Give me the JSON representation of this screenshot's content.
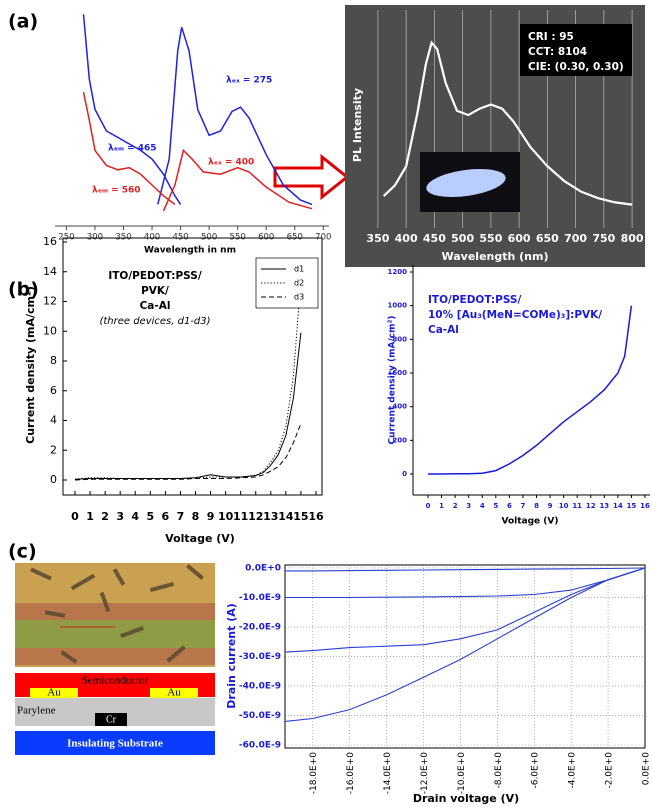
{
  "panel_labels": [
    "(a)",
    "(b)",
    "(c)"
  ],
  "device_diagram": {
    "semiconductor": "Semiconductor",
    "electrodes": [
      "Au",
      "Au"
    ],
    "dielectric": "Parylene",
    "gate": "Cr",
    "substrate": "Insulating Substrate"
  },
  "chart_data": [
    {
      "type": "line",
      "x_label": "Wavelength in nm",
      "xlim": [
        230,
        710
      ],
      "ylim": [
        0,
        100
      ],
      "xticks": [
        250,
        300,
        350,
        400,
        450,
        500,
        550,
        600,
        650,
        700
      ],
      "series": [
        {
          "name": "λₑₘ = 465",
          "color": "#2020e0",
          "x": [
            280,
            290,
            300,
            320,
            340,
            360,
            380,
            400,
            420,
            440,
            450
          ],
          "values": [
            98,
            68,
            54,
            44,
            41,
            38,
            35,
            31,
            24,
            14,
            10
          ]
        },
        {
          "name": "λₑₓ = 275",
          "color": "#2020e0",
          "x": [
            410,
            430,
            445,
            452,
            465,
            480,
            500,
            520,
            540,
            555,
            570,
            600,
            630,
            660,
            680
          ],
          "values": [
            10,
            31,
            81,
            92,
            81,
            54,
            42,
            44,
            53,
            55,
            50,
            33,
            19,
            12,
            10
          ]
        },
        {
          "name": "λₑₘ = 560",
          "color": "#e02020",
          "x": [
            280,
            290,
            300,
            320,
            340,
            360,
            380,
            400,
            420,
            440
          ],
          "values": [
            62,
            49,
            35,
            28,
            26,
            27,
            24,
            19,
            14,
            10
          ]
        },
        {
          "name": "λₑₓ = 400",
          "color": "#e02020",
          "x": [
            420,
            440,
            455,
            470,
            490,
            520,
            550,
            570,
            600,
            640,
            680
          ],
          "values": [
            7,
            19,
            35,
            31,
            25,
            24,
            27,
            25,
            18,
            11,
            8
          ]
        }
      ]
    },
    {
      "type": "line",
      "x_label": "Wavelength (nm)",
      "y_label": "PL Intensity",
      "xlim": [
        336,
        814
      ],
      "ylim": [
        0,
        100
      ],
      "xticks": [
        350,
        400,
        450,
        500,
        550,
        600,
        650,
        700,
        750,
        800
      ],
      "grid": true,
      "background": "#4d4d4d",
      "annotation": [
        "CRI : 95",
        "CCT: 8104",
        "CIE: (0.30, 0.30)"
      ],
      "series": [
        {
          "color": "#ffffff",
          "x": [
            360,
            380,
            400,
            420,
            435,
            445,
            455,
            470,
            490,
            510,
            530,
            550,
            570,
            590,
            620,
            650,
            680,
            710,
            740,
            770,
            800
          ],
          "values": [
            15,
            20,
            29,
            54,
            77,
            87,
            84,
            68,
            55,
            53,
            56,
            58,
            56,
            50,
            38,
            29,
            22,
            17,
            14,
            12,
            11
          ]
        }
      ]
    },
    {
      "type": "line",
      "annotation": [
        "ITO/PEDOT:PSS/",
        "PVK/",
        "Ca-Al",
        "(three devices, d1-d3)"
      ],
      "x_label": "Voltage (V)",
      "y_label": "Current density (mA/cm²)",
      "xlim": [
        0,
        16
      ],
      "ylim": [
        0,
        16
      ],
      "xticks": [
        0,
        1,
        2,
        3,
        4,
        5,
        6,
        7,
        8,
        9,
        10,
        11,
        12,
        13,
        14,
        15,
        16
      ],
      "yticks": [
        0,
        2,
        4,
        6,
        8,
        10,
        12,
        14,
        16
      ],
      "legend": "upper right",
      "x": [
        0,
        1,
        2,
        3,
        4,
        5,
        6,
        7,
        8,
        9,
        10,
        11,
        12,
        12.5,
        13,
        13.5,
        14,
        14.5,
        15
      ],
      "series": [
        {
          "name": "d1",
          "color": "#000000",
          "line_style": "solid",
          "values": [
            0.05,
            0.1,
            0.1,
            0.1,
            0.1,
            0.1,
            0.1,
            0.1,
            0.15,
            0.35,
            0.2,
            0.2,
            0.3,
            0.5,
            1.0,
            1.7,
            3.0,
            5.5,
            9.9
          ]
        },
        {
          "name": "d2",
          "color": "#000000",
          "line_style": "dotted",
          "values": [
            0.05,
            0.15,
            0.15,
            0.1,
            0.1,
            0.1,
            0.1,
            0.1,
            0.15,
            0.2,
            0.2,
            0.2,
            0.3,
            0.6,
            1.2,
            2.0,
            3.6,
            7.0,
            13.5
          ]
        },
        {
          "name": "d3",
          "color": "#000000",
          "line_style": "dashed",
          "values": [
            0,
            0.05,
            0.05,
            0.05,
            0.05,
            0.05,
            0.05,
            0.05,
            0.1,
            0.1,
            0.1,
            0.15,
            0.2,
            0.35,
            0.6,
            0.9,
            1.5,
            2.5,
            3.8
          ]
        }
      ]
    },
    {
      "type": "line",
      "annotation": [
        "ITO/PEDOT:PSS/",
        "10% [Au₃(MeN=COMe)₃]:PVK/",
        "Ca-Al"
      ],
      "x_label": "Voltage (V)",
      "y_label": "Current density (mA/cm²)",
      "xlim": [
        0,
        16
      ],
      "ylim": [
        0,
        1200
      ],
      "xticks": [
        0,
        1,
        2,
        3,
        4,
        5,
        6,
        7,
        8,
        9,
        10,
        11,
        12,
        13,
        14,
        15,
        16
      ],
      "yticks": [
        0,
        200,
        400,
        600,
        800,
        1000,
        1200
      ],
      "text_color": "#1a1adb",
      "x": [
        0,
        1,
        2,
        3,
        4,
        5,
        6,
        7,
        8,
        9,
        10,
        11,
        12,
        13,
        14,
        14.5,
        15
      ],
      "series": [
        {
          "color": "#1a1adb",
          "values": [
            0,
            0,
            1,
            2,
            5,
            20,
            60,
            110,
            170,
            240,
            310,
            370,
            430,
            500,
            600,
            700,
            1000
          ]
        }
      ]
    },
    {
      "type": "line",
      "x_label": "Drain voltage (V)",
      "y_label": "Drain current (A)",
      "xlim": [
        -19.5,
        0
      ],
      "ylim": [
        -6.1e-08,
        1e-09
      ],
      "xticks": [
        {
          "value": -18,
          "label": "-18.0E+0"
        },
        {
          "value": -16,
          "label": "-16.0E+0"
        },
        {
          "value": -14,
          "label": "-14.0E+0"
        },
        {
          "value": -12,
          "label": "-12.0E+0"
        },
        {
          "value": -10,
          "label": "-10.0E+0"
        },
        {
          "value": -8,
          "label": "-8.0E+0"
        },
        {
          "value": -6,
          "label": "-6.0E+0"
        },
        {
          "value": -4,
          "label": "-4.0E+0"
        },
        {
          "value": -2,
          "label": "-2.0E+0"
        },
        {
          "value": 0,
          "label": "0.0E+0"
        }
      ],
      "yticks": [
        {
          "value": 0,
          "label": "0.0E+0"
        },
        {
          "value": -1e-08,
          "label": "-10.0E-9"
        },
        {
          "value": -2e-08,
          "label": "-20.0E-9"
        },
        {
          "value": -3e-08,
          "label": "-30.0E-9"
        },
        {
          "value": -4e-08,
          "label": "-40.0E-9"
        },
        {
          "value": -5e-08,
          "label": "-50.0E-9"
        },
        {
          "value": -6e-08,
          "label": "-60.0E-9"
        }
      ],
      "grid": true,
      "text_color": "#1a1adb",
      "x": [
        -19.5,
        -18,
        -16,
        -14,
        -12,
        -10,
        -8,
        -6,
        -4,
        -2,
        0
      ],
      "series": [
        {
          "color": "#2a3fd0",
          "values": [
            -1e-09,
            -1e-09,
            -9e-10,
            -8e-10,
            -7e-10,
            -6e-10,
            -5e-10,
            -4e-10,
            -3e-10,
            -2e-10,
            0
          ]
        },
        {
          "color": "#2a3fd0",
          "values": [
            -1e-08,
            -1e-08,
            -1e-08,
            -9.9e-09,
            -9.8e-09,
            -9.7e-09,
            -9.5e-09,
            -9e-09,
            -7.5e-09,
            -4e-09,
            0
          ]
        },
        {
          "color": "#2a3fd0",
          "values": [
            -2.85e-08,
            -2.8e-08,
            -2.7e-08,
            -2.65e-08,
            -2.6e-08,
            -2.4e-08,
            -2.1e-08,
            -1.5e-08,
            -9e-09,
            -4e-09,
            0
          ]
        },
        {
          "color": "#2a3fd0",
          "values": [
            -5.2e-08,
            -5.1e-08,
            -4.8e-08,
            -4.3e-08,
            -3.7e-08,
            -3.1e-08,
            -2.4e-08,
            -1.7e-08,
            -1e-08,
            -4e-09,
            0
          ]
        }
      ]
    }
  ]
}
